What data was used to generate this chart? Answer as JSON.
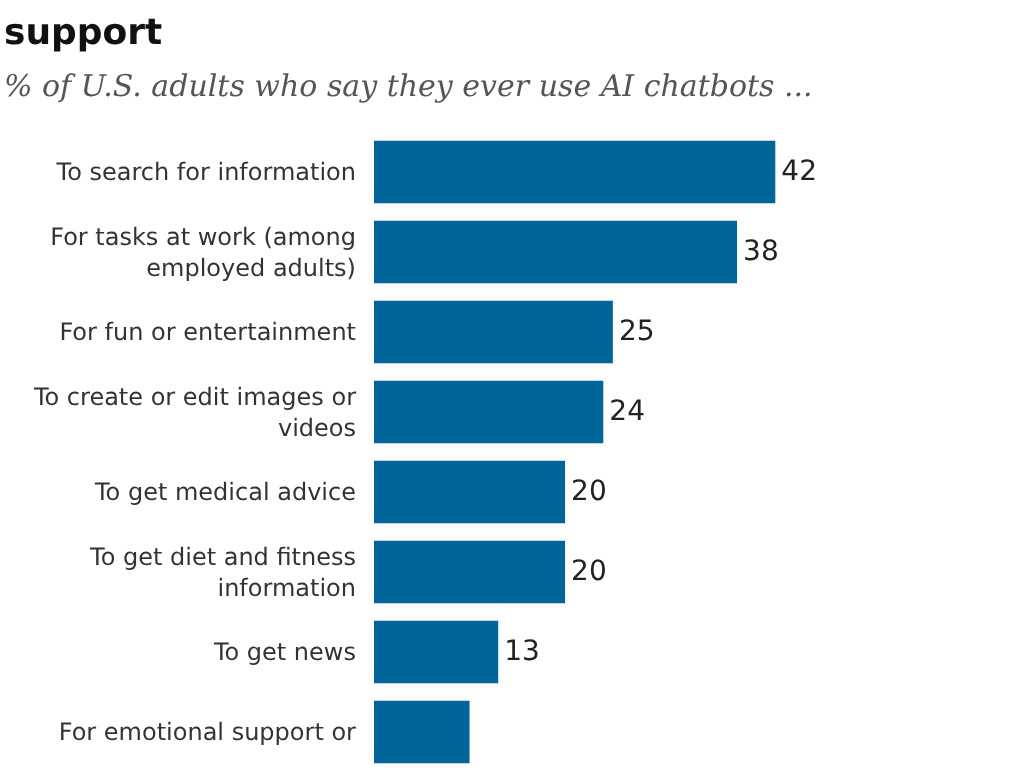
{
  "chart_data": {
    "type": "bar",
    "orientation": "horizontal",
    "title": "support",
    "subtitle": "% of U.S. adults who say they ever use AI chatbots ...",
    "categories": [
      "To search for information",
      "For tasks at work (among\nemployed adults)",
      "For fun or entertainment",
      "To create or edit images or\nvideos",
      "To get medical advice",
      "To get diet and fitness\ninformation",
      "To get news",
      "For emotional support or"
    ],
    "values": [
      42,
      38,
      25,
      24,
      20,
      20,
      13,
      10
    ],
    "value_labels": [
      "42",
      "38",
      "25",
      "24",
      "20",
      "20",
      "13",
      null
    ],
    "color": "#006699"
  }
}
